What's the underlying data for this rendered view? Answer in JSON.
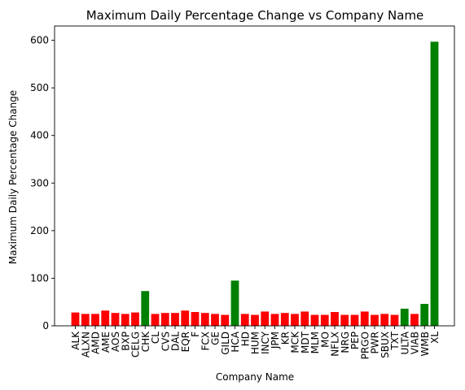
{
  "chart_data": {
    "type": "bar",
    "title": "Maximum Daily Percentage Change vs Company Name",
    "xlabel": "Company Name",
    "ylabel": "Maximum Daily Percentage Change",
    "ylim": [
      0,
      630
    ],
    "yticks": [
      0,
      100,
      200,
      300,
      400,
      500,
      600
    ],
    "grid": false,
    "categories": [
      "ALK",
      "ALXN",
      "AMD",
      "AME",
      "AOS",
      "BXP",
      "CELG",
      "CHK",
      "CL",
      "CVS",
      "DAL",
      "EQR",
      "F",
      "FCX",
      "GE",
      "GILD",
      "HCA",
      "HD",
      "HUM",
      "INCY",
      "JPM",
      "KR",
      "MCK",
      "MDT",
      "MLM",
      "MO",
      "NFLX",
      "NRG",
      "PEP",
      "PRGO",
      "PWR",
      "SBUX",
      "TXT",
      "ULTA",
      "VIAB",
      "WMB",
      "XL"
    ],
    "values": [
      28,
      25,
      25,
      32,
      27,
      25,
      28,
      73,
      25,
      27,
      27,
      32,
      29,
      27,
      25,
      23,
      95,
      25,
      23,
      30,
      25,
      27,
      25,
      30,
      23,
      23,
      29,
      23,
      23,
      30,
      23,
      25,
      23,
      36,
      25,
      46,
      597
    ],
    "colors": [
      "red",
      "red",
      "red",
      "red",
      "red",
      "red",
      "red",
      "green",
      "red",
      "red",
      "red",
      "red",
      "red",
      "red",
      "red",
      "red",
      "green",
      "red",
      "red",
      "red",
      "red",
      "red",
      "red",
      "red",
      "red",
      "red",
      "red",
      "red",
      "red",
      "red",
      "red",
      "red",
      "red",
      "green",
      "red",
      "green",
      "green"
    ],
    "color_values": {
      "red": "#ff0000",
      "green": "#008000"
    }
  }
}
